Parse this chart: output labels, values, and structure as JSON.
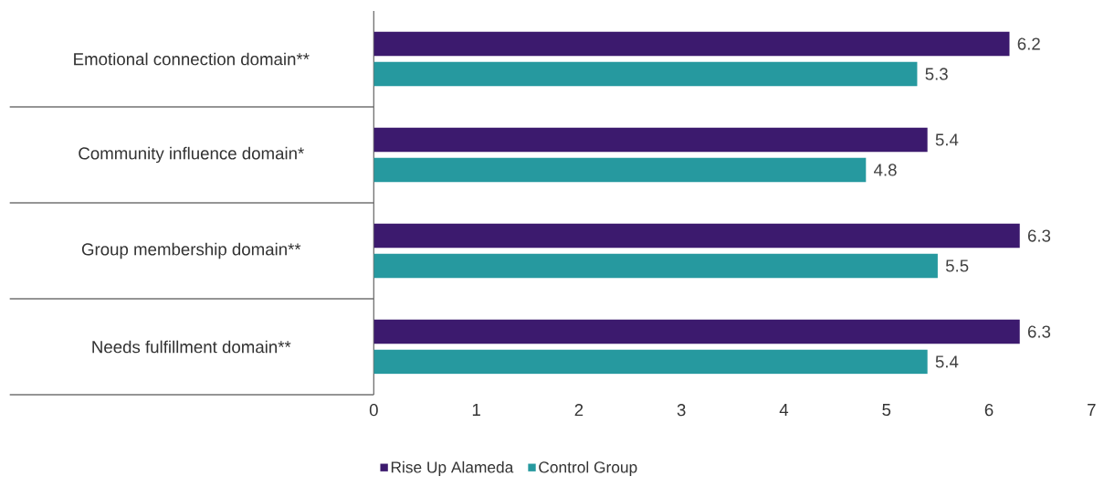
{
  "chart_data": {
    "type": "bar",
    "orientation": "horizontal",
    "categories": [
      "Emotional connection domain**",
      "Community influence domain*",
      "Group membership domain**",
      "Needs fulfillment domain**"
    ],
    "series": [
      {
        "name": "Rise Up Alameda",
        "color": "#3c1a6e",
        "values": [
          6.2,
          5.4,
          6.3,
          6.3
        ]
      },
      {
        "name": "Control Group",
        "color": "#26999f",
        "values": [
          5.3,
          4.8,
          5.5,
          5.4
        ]
      }
    ],
    "xlim": [
      0,
      7
    ],
    "xticks": [
      0,
      1,
      2,
      3,
      4,
      5,
      6,
      7
    ],
    "data_labels": true,
    "legend": "bottom"
  }
}
